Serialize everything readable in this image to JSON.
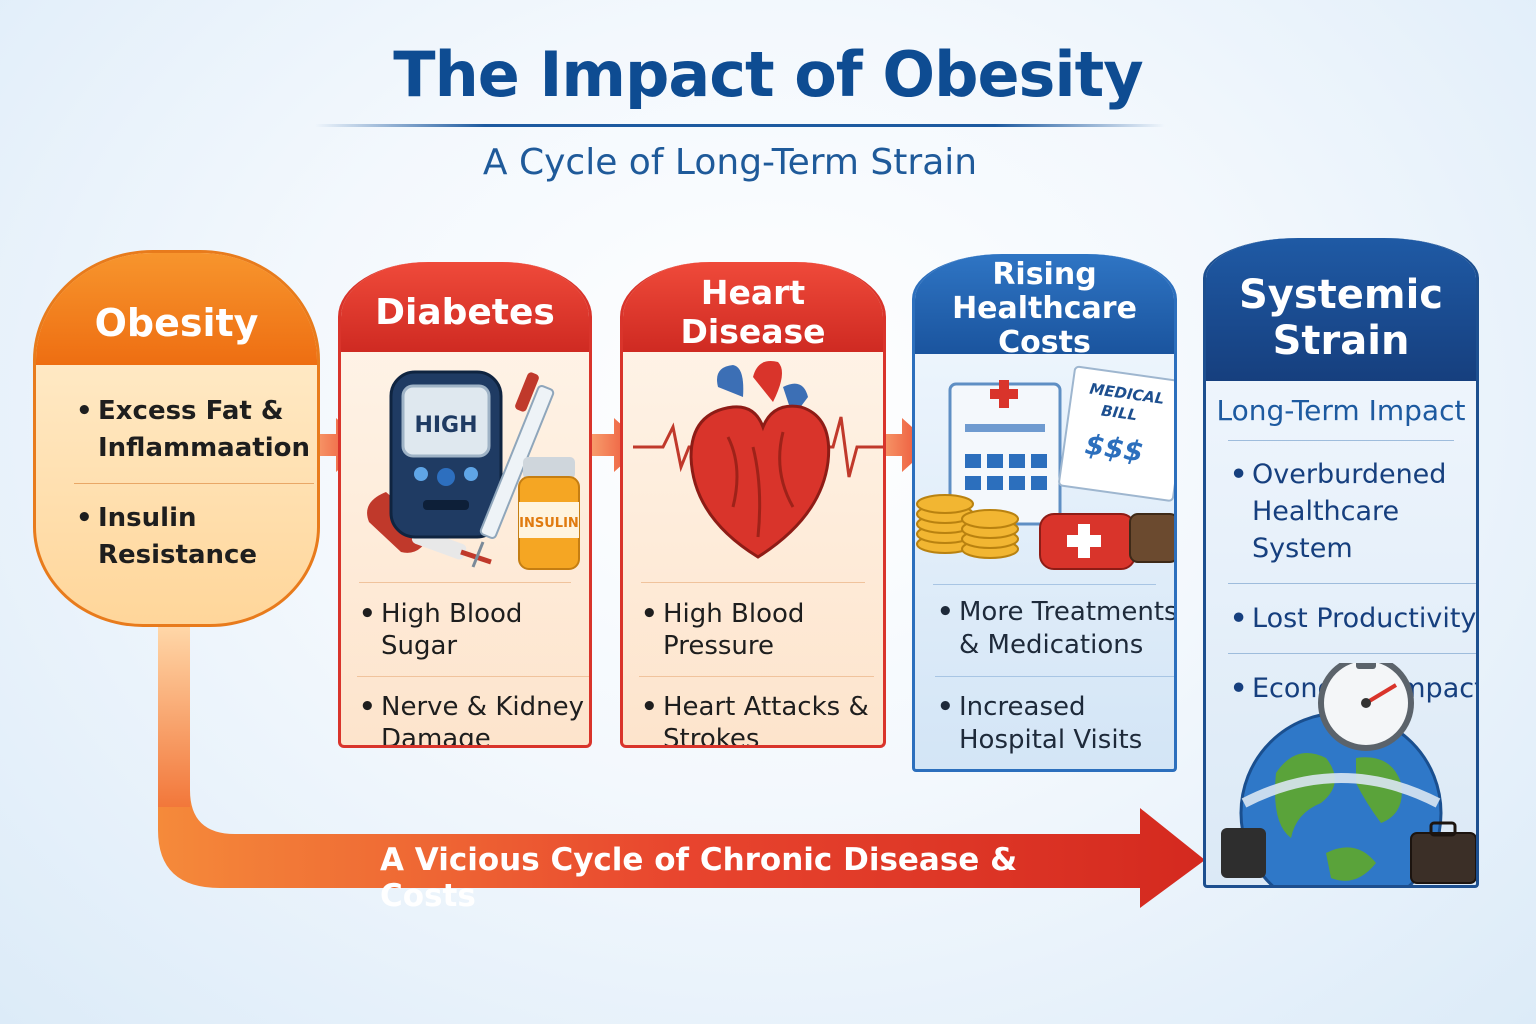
{
  "header": {
    "title": "The Impact of Obesity",
    "subtitle": "A Cycle of Long-Term Strain"
  },
  "obesity": {
    "title": "Obesity",
    "items": [
      "Excess Fat & Inflammaation",
      "Insulin Resistance"
    ]
  },
  "diabetes": {
    "title": "Diabetes",
    "meter_label": "HIGH",
    "bottle_label": "INSULIN",
    "items": [
      "High Blood Sugar",
      "Nerve & Kidney Damage"
    ]
  },
  "heart": {
    "title": "Heart Disease",
    "items": [
      "High Blood Pressure",
      "Heart Attacks & Strokes"
    ]
  },
  "costs": {
    "title_line1": "Rising",
    "title_line2": "Healthcare Costs",
    "bill_line1": "MEDICAL",
    "bill_line2": "BILL",
    "bill_amount": "$$$",
    "items": [
      "More Treatments & Medications",
      "Increased Hospital Visits"
    ]
  },
  "systemic": {
    "title_line1": "Systemic",
    "title_line2": "Strain",
    "subtitle": "Long-Term Impact",
    "items": [
      "Overburdened Healthcare System",
      "Lost Productivity",
      "Economic Impact"
    ]
  },
  "cycle": {
    "label": "A Vicious Cycle of Chronic Disease & Costs"
  },
  "colors": {
    "title_blue": "#0e4c92",
    "orange": "#ee6e12",
    "red": "#d9342b",
    "blue": "#2c6fbd",
    "navy": "#1d4f8f"
  }
}
